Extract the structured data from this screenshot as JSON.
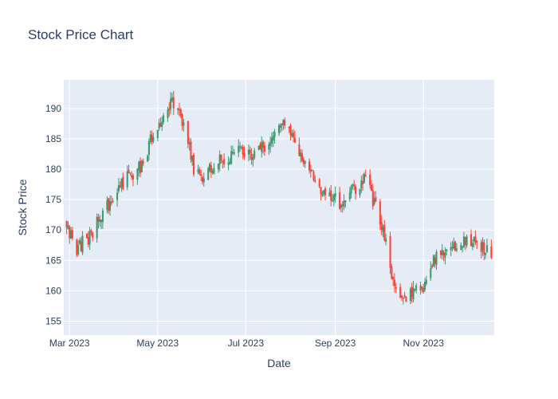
{
  "chart_data": {
    "type": "candlestick",
    "title": "Stock Price Chart",
    "xlabel": "Date",
    "ylabel": "Stock Price",
    "x_range": [
      "2023-02-25",
      "2023-12-20"
    ],
    "y_range": [
      152.7,
      194.7
    ],
    "x_ticks": [
      {
        "date": "2023-03-01",
        "label": "Mar 2023"
      },
      {
        "date": "2023-05-01",
        "label": "May 2023"
      },
      {
        "date": "2023-07-01",
        "label": "Jul 2023"
      },
      {
        "date": "2023-09-01",
        "label": "Sep 2023"
      },
      {
        "date": "2023-11-01",
        "label": "Nov 2023"
      }
    ],
    "y_ticks": [
      155,
      160,
      165,
      170,
      175,
      180,
      185,
      190
    ],
    "grid": true,
    "legend": "none",
    "colors": {
      "increasing": "#3D9970",
      "decreasing": "#FF4136",
      "plot_bg": "#E5ECF6",
      "grid": "#ffffff",
      "text": "#2a3f5f"
    },
    "close_trace": [
      [
        "2023-02-25",
        171
      ],
      [
        "2023-03-06",
        167
      ],
      [
        "2023-03-15",
        169
      ],
      [
        "2023-03-25",
        173
      ],
      [
        "2023-04-01",
        176
      ],
      [
        "2023-04-12",
        179
      ],
      [
        "2023-04-18",
        180
      ],
      [
        "2023-04-22",
        182
      ],
      [
        "2023-04-28",
        186
      ],
      [
        "2023-05-05",
        189
      ],
      [
        "2023-05-12",
        191
      ],
      [
        "2023-05-20",
        187
      ],
      [
        "2023-05-26",
        180
      ],
      [
        "2023-06-02",
        179
      ],
      [
        "2023-06-10",
        181
      ],
      [
        "2023-06-18",
        182
      ],
      [
        "2023-06-26",
        183
      ],
      [
        "2023-07-05",
        182
      ],
      [
        "2023-07-15",
        184
      ],
      [
        "2023-07-25",
        188
      ],
      [
        "2023-08-02",
        185
      ],
      [
        "2023-08-12",
        181
      ],
      [
        "2023-08-20",
        177
      ],
      [
        "2023-08-28",
        176
      ],
      [
        "2023-09-05",
        174
      ],
      [
        "2023-09-15",
        177
      ],
      [
        "2023-09-22",
        179
      ],
      [
        "2023-10-01",
        172
      ],
      [
        "2023-10-06",
        168
      ],
      [
        "2023-10-12",
        160
      ],
      [
        "2023-10-18",
        158
      ],
      [
        "2023-10-25",
        160
      ],
      [
        "2023-11-01",
        161
      ],
      [
        "2023-11-08",
        165
      ],
      [
        "2023-11-18",
        167
      ],
      [
        "2023-11-28",
        168
      ],
      [
        "2023-12-06",
        168
      ],
      [
        "2023-12-18",
        166
      ]
    ]
  }
}
